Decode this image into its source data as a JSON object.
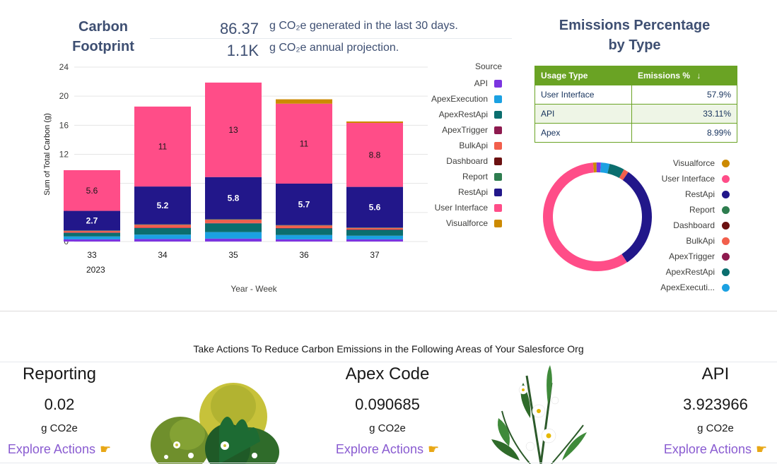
{
  "header": {
    "title_line1": "Carbon",
    "title_line2": "Footprint",
    "metric1_value": "86.37",
    "metric1_text": "g CO₂e generated in the last 30 days.",
    "metric2_value": "1.1K",
    "metric2_text": "g CO₂e annual projection."
  },
  "chart_data": {
    "type": "bar",
    "stacked": true,
    "categories": [
      "33",
      "34",
      "35",
      "36",
      "37"
    ],
    "category_group": "2023",
    "xlabel": "Year - Week",
    "ylabel": "Sum of Total Carbon (g)",
    "ylim": [
      0,
      24
    ],
    "yticks": [
      0,
      4,
      8,
      12,
      16,
      20,
      24
    ],
    "legend_title": "Source",
    "legend_placement": "right",
    "series": [
      {
        "name": "API",
        "color": "#7b35e0",
        "values": [
          0.3,
          0.35,
          0.4,
          0.3,
          0.3
        ]
      },
      {
        "name": "ApexExecution",
        "color": "#1ba1e2",
        "values": [
          0.4,
          0.6,
          0.9,
          0.6,
          0.5
        ]
      },
      {
        "name": "ApexRestApi",
        "color": "#0b6e6e",
        "values": [
          0.5,
          0.9,
          1.2,
          0.9,
          0.8
        ]
      },
      {
        "name": "ApexTrigger",
        "color": "#8e1a4f",
        "values": [
          0.05,
          0.05,
          0.05,
          0.05,
          0.05
        ]
      },
      {
        "name": "BulkApi",
        "color": "#f25f4c",
        "values": [
          0.2,
          0.4,
          0.45,
          0.35,
          0.2
        ]
      },
      {
        "name": "Dashboard",
        "color": "#6b1111",
        "values": [
          0.02,
          0.02,
          0.02,
          0.02,
          0.02
        ]
      },
      {
        "name": "Report",
        "color": "#2e7d4f",
        "values": [
          0.05,
          0.05,
          0.05,
          0.05,
          0.05
        ]
      },
      {
        "name": "RestApi",
        "color": "#22178a",
        "values": [
          2.7,
          5.2,
          5.8,
          5.7,
          5.6
        ]
      },
      {
        "name": "User Interface",
        "color": "#ff4d88",
        "values": [
          5.6,
          11,
          13,
          11,
          8.8
        ]
      },
      {
        "name": "Visualforce",
        "color": "#cc8a00",
        "values": [
          0,
          0,
          0,
          0.6,
          0.2
        ]
      }
    ],
    "data_labels": [
      {
        "series": "RestApi",
        "labels": [
          "2.7",
          "5.2",
          "5.8",
          "5.7",
          "5.6"
        ]
      },
      {
        "series": "User Interface",
        "labels": [
          "5.6",
          "11",
          "13",
          "11",
          "8.8"
        ]
      }
    ]
  },
  "percentage": {
    "title_line1": "Emissions Percentage",
    "title_line2": "by Type",
    "col_type": "Usage Type",
    "col_pct": "Emissions %",
    "sort_icon": "↓",
    "rows": [
      {
        "type": "User Interface",
        "pct": "57.9%"
      },
      {
        "type": "API",
        "pct": "33.11%"
      },
      {
        "type": "Apex",
        "pct": "8.99%"
      }
    ]
  },
  "donut": {
    "slices": [
      {
        "name": "User Interface",
        "value": 57.9,
        "color": "#ff4d88"
      },
      {
        "name": "RestApi",
        "value": 31.2,
        "color": "#22178a"
      },
      {
        "name": "BulkApi",
        "value": 1.5,
        "color": "#f25f4c"
      },
      {
        "name": "ApexRestApi",
        "value": 4.5,
        "color": "#0b6e6e"
      },
      {
        "name": "ApexExecution",
        "value": 2.6,
        "color": "#1ba1e2"
      },
      {
        "name": "API",
        "value": 1.3,
        "color": "#7b35e0"
      },
      {
        "name": "Visualforce",
        "value": 1.0,
        "color": "#cc8a00"
      }
    ],
    "legend": [
      {
        "label": "Visualforce",
        "color": "#cc8a00"
      },
      {
        "label": "User Interface",
        "color": "#ff4d88"
      },
      {
        "label": "RestApi",
        "color": "#22178a"
      },
      {
        "label": "Report",
        "color": "#2e7d4f"
      },
      {
        "label": "Dashboard",
        "color": "#6b1111"
      },
      {
        "label": "BulkApi",
        "color": "#f25f4c"
      },
      {
        "label": "ApexTrigger",
        "color": "#8e1a4f"
      },
      {
        "label": "ApexRestApi",
        "color": "#0b6e6e"
      },
      {
        "label": "ApexExecuti...",
        "color": "#1ba1e2"
      }
    ]
  },
  "actions": {
    "title": "Take Actions To Reduce Carbon Emissions in the Following Areas of Your Salesforce Org",
    "cards": [
      {
        "title": "Reporting",
        "value": "0.02",
        "unit": "g CO2e",
        "link": "Explore Actions"
      },
      {
        "title": "Apex Code",
        "value": "0.090685",
        "unit": "g CO2e",
        "link": "Explore Actions"
      },
      {
        "title": "API",
        "value": "3.923966",
        "unit": "g CO2e",
        "link": "Explore Actions"
      }
    ],
    "hand_icon": "☛"
  }
}
